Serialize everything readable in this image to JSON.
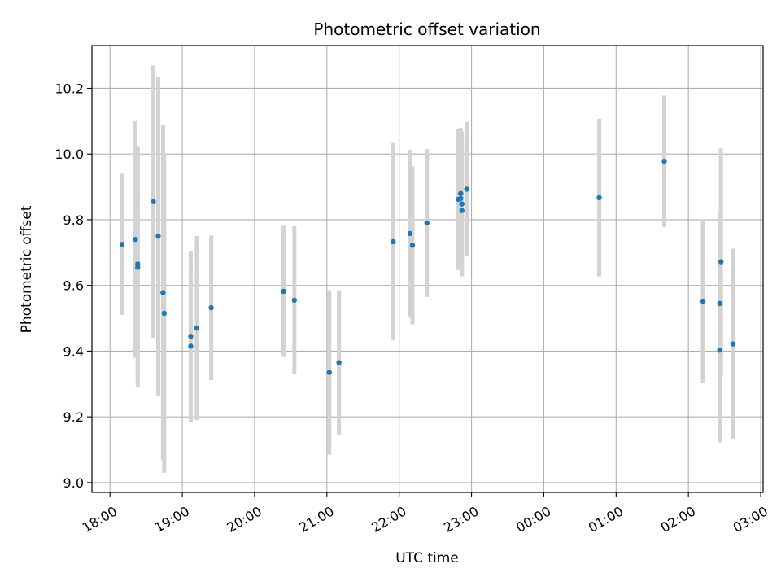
{
  "chart_data": {
    "type": "scatter",
    "title": "Photometric offset variation",
    "xlabel": "UTC time",
    "ylabel": "Photometric offset",
    "grid": true,
    "x_ticks": [
      "18:00",
      "19:00",
      "20:00",
      "21:00",
      "22:00",
      "23:00",
      "00:00",
      "01:00",
      "02:00",
      "03:00"
    ],
    "y_ticks": [
      "9.0",
      "9.2",
      "9.4",
      "9.6",
      "9.8",
      "10.0",
      "10.2"
    ],
    "xlim": [
      "17:45",
      "03:02"
    ],
    "ylim": [
      8.97,
      10.33
    ],
    "colors": {
      "marker": "#1f77b4",
      "errorbar": "#d3d3d3",
      "grid": "#b0b0b0"
    },
    "series": [
      {
        "points": [
          {
            "x": "18:10",
            "y": 9.725,
            "err": 0.215
          },
          {
            "x": "18:21",
            "y": 9.74,
            "err": 0.36
          },
          {
            "x": "18:23",
            "y": 9.665,
            "err": 0.36
          },
          {
            "x": "18:23",
            "y": 9.655,
            "err": 0.365
          },
          {
            "x": "18:36",
            "y": 9.855,
            "err": 0.415
          },
          {
            "x": "18:40",
            "y": 9.75,
            "err": 0.485
          },
          {
            "x": "18:44",
            "y": 9.578,
            "err": 0.51
          },
          {
            "x": "18:45",
            "y": 9.515,
            "err": 0.485
          },
          {
            "x": "19:07",
            "y": 9.445,
            "err": 0.26
          },
          {
            "x": "19:07",
            "y": 9.415,
            "err": 0.23
          },
          {
            "x": "19:12",
            "y": 9.47,
            "err": 0.28
          },
          {
            "x": "19:24",
            "y": 9.532,
            "err": 0.22
          },
          {
            "x": "20:24",
            "y": 9.582,
            "err": 0.2
          },
          {
            "x": "20:33",
            "y": 9.555,
            "err": 0.225
          },
          {
            "x": "21:02",
            "y": 9.335,
            "err": 0.25
          },
          {
            "x": "21:10",
            "y": 9.365,
            "err": 0.22
          },
          {
            "x": "21:55",
            "y": 9.733,
            "err": 0.3
          },
          {
            "x": "22:09",
            "y": 9.758,
            "err": 0.255
          },
          {
            "x": "22:11",
            "y": 9.722,
            "err": 0.24
          },
          {
            "x": "22:23",
            "y": 9.79,
            "err": 0.225
          },
          {
            "x": "22:49",
            "y": 9.862,
            "err": 0.215
          },
          {
            "x": "22:51",
            "y": 9.88,
            "err": 0.2
          },
          {
            "x": "22:51",
            "y": 9.865,
            "err": 0.21
          },
          {
            "x": "22:52",
            "y": 9.848,
            "err": 0.22
          },
          {
            "x": "22:52",
            "y": 9.828,
            "err": 0.2
          },
          {
            "x": "22:56",
            "y": 9.893,
            "err": 0.205
          },
          {
            "x": "00:46",
            "y": 9.867,
            "err": 0.24
          },
          {
            "x": "01:40",
            "y": 9.978,
            "err": 0.2
          },
          {
            "x": "02:12",
            "y": 9.552,
            "err": 0.25
          },
          {
            "x": "02:26",
            "y": 9.545,
            "err": 0.28
          },
          {
            "x": "02:26",
            "y": 9.403,
            "err": 0.28
          },
          {
            "x": "02:27",
            "y": 9.672,
            "err": 0.345
          },
          {
            "x": "02:37",
            "y": 9.422,
            "err": 0.29
          }
        ]
      }
    ]
  }
}
